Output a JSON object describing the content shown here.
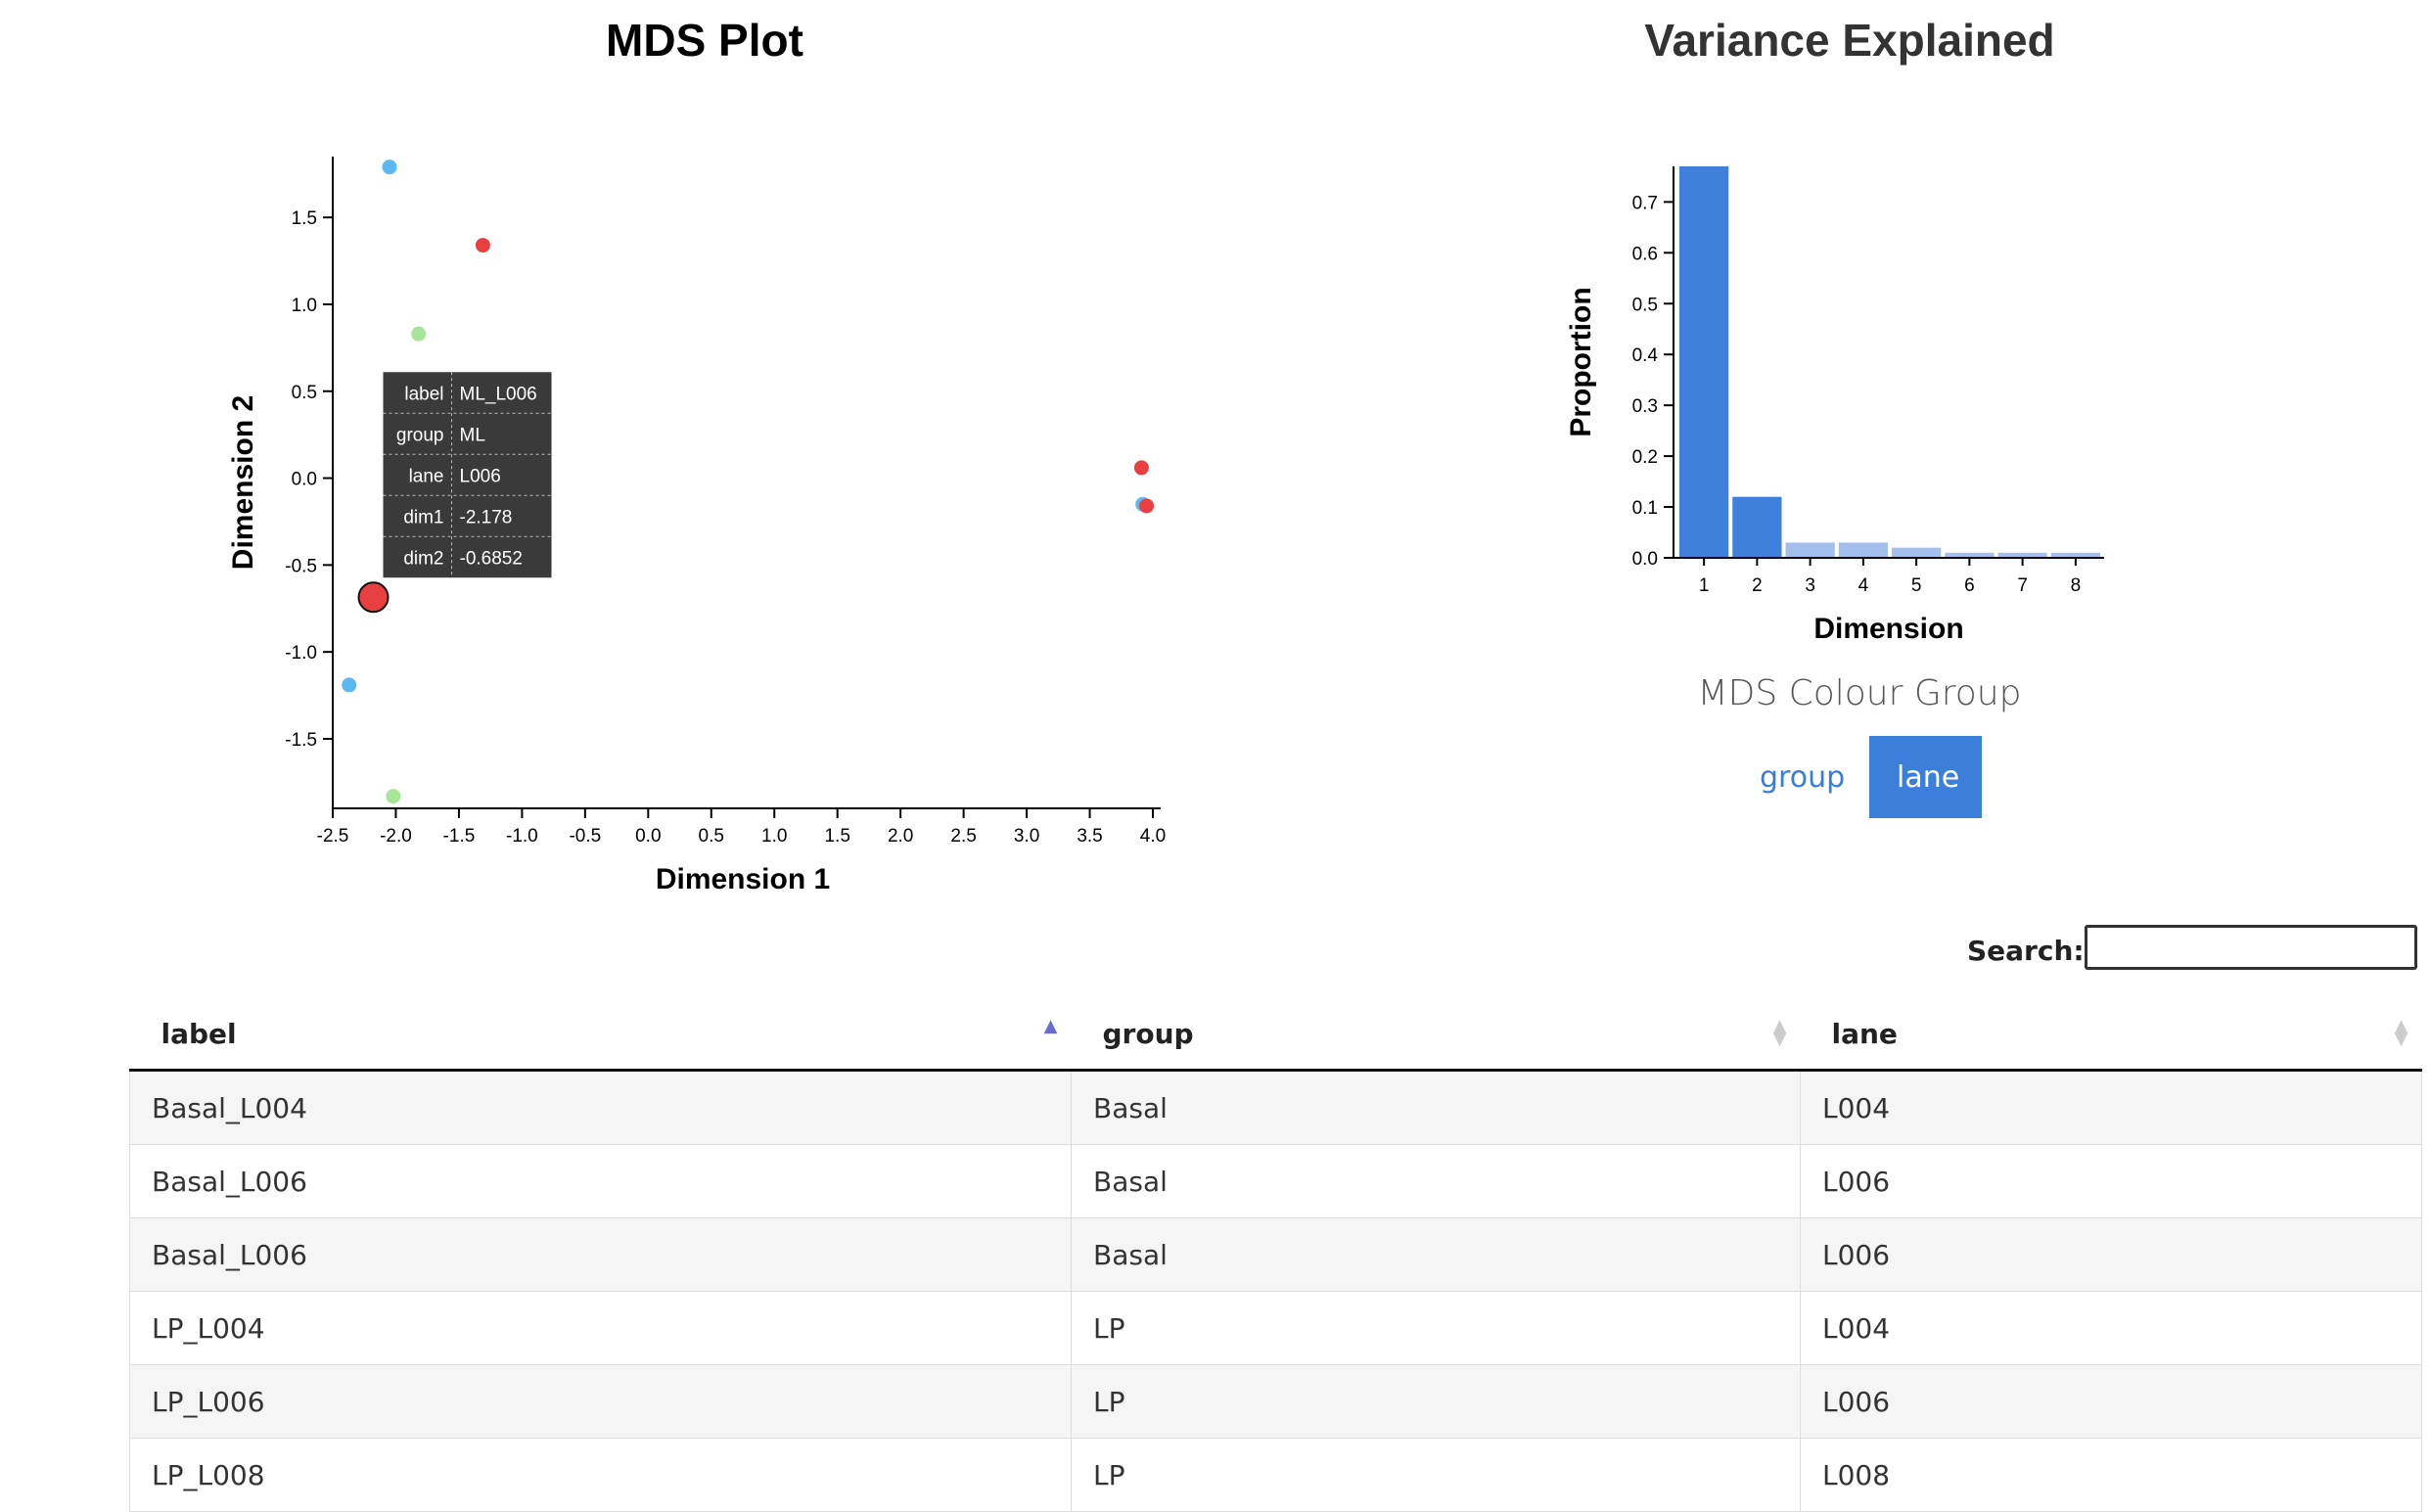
{
  "mds_panel": {
    "title": "MDS Plot",
    "tooltip": {
      "rows": [
        {
          "key": "label",
          "value": "ML_L006"
        },
        {
          "key": "group",
          "value": "ML"
        },
        {
          "key": "lane",
          "value": "L006"
        },
        {
          "key": "dim1",
          "value": "-2.178"
        },
        {
          "key": "dim2",
          "value": "-0.6852"
        }
      ]
    }
  },
  "variance_panel": {
    "title": "Variance Explained"
  },
  "colour_group": {
    "label": "MDS Colour Group",
    "options": [
      "group",
      "lane"
    ],
    "selected": "lane",
    "selected_color": "#3c7fdb"
  },
  "search": {
    "label": "Search:",
    "value": ""
  },
  "table": {
    "columns": [
      "label",
      "group",
      "lane"
    ],
    "sorted_column": "label",
    "sort_direction": "ascending",
    "rows": [
      [
        "Basal_L004",
        "Basal",
        "L004"
      ],
      [
        "Basal_L006",
        "Basal",
        "L006"
      ],
      [
        "Basal_L006",
        "Basal",
        "L006"
      ],
      [
        "LP_L004",
        "LP",
        "L004"
      ],
      [
        "LP_L006",
        "LP",
        "L006"
      ],
      [
        "LP_L008",
        "LP",
        "L008"
      ]
    ]
  },
  "chart_data": [
    {
      "type": "scatter",
      "title": "MDS Plot",
      "xlabel": "Dimension 1",
      "ylabel": "Dimension 2",
      "xlim": [
        -2.5,
        4.0
      ],
      "ylim": [
        -1.9,
        1.85
      ],
      "xticks": [
        "-2.5",
        "-2.0",
        "-1.5",
        "-1.0",
        "-0.5",
        "0.0",
        "0.5",
        "1.0",
        "1.5",
        "2.0",
        "2.5",
        "3.0",
        "3.5",
        "4.0"
      ],
      "yticks": [
        "-1.5",
        "-1.0",
        "-0.5",
        "0.0",
        "0.5",
        "1.0",
        "1.5"
      ],
      "grid": false,
      "points": [
        {
          "x": -2.05,
          "y": 1.79,
          "color": "#5bb8f0"
        },
        {
          "x": -1.31,
          "y": 1.34,
          "color": "#e84040"
        },
        {
          "x": -1.82,
          "y": 0.83,
          "color": "#a7e59a"
        },
        {
          "x": 3.91,
          "y": 0.06,
          "color": "#e84040"
        },
        {
          "x": 3.92,
          "y": -0.15,
          "color": "#5bb8f0"
        },
        {
          "x": 3.95,
          "y": -0.16,
          "color": "#e84040"
        },
        {
          "x": -2.178,
          "y": -0.6852,
          "color": "#e84040",
          "highlighted": true
        },
        {
          "x": -2.37,
          "y": -1.19,
          "color": "#5bb8f0"
        },
        {
          "x": -2.02,
          "y": -1.83,
          "color": "#a7e59a"
        }
      ]
    },
    {
      "type": "bar",
      "title": "Variance Explained",
      "xlabel": "Dimension",
      "ylabel": "Proportion",
      "categories": [
        "1",
        "2",
        "3",
        "4",
        "5",
        "6",
        "7",
        "8"
      ],
      "values": [
        0.77,
        0.12,
        0.03,
        0.03,
        0.02,
        0.01,
        0.01,
        0.01
      ],
      "yticks": [
        "0.0",
        "0.1",
        "0.2",
        "0.3",
        "0.4",
        "0.5",
        "0.6",
        "0.7"
      ],
      "ylim": [
        0,
        0.77
      ],
      "colors": {
        "selected": "#3f80dc",
        "unselected": "#a3c0ec"
      },
      "selected_count": 2
    }
  ]
}
